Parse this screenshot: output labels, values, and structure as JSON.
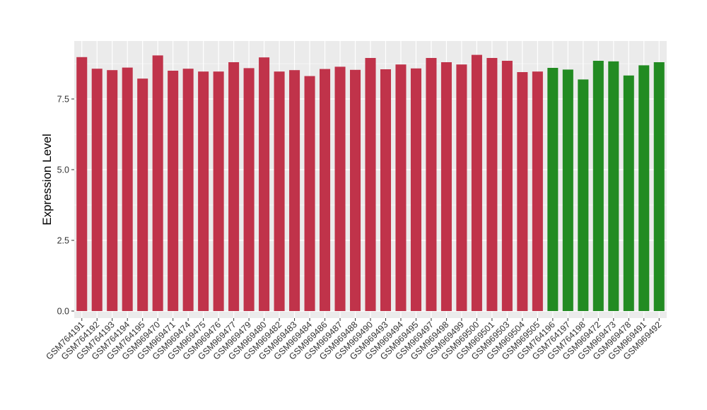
{
  "chart_data": {
    "type": "bar",
    "title": "",
    "xlabel": "",
    "ylabel": "Expression Level",
    "ylim": [
      -0.25,
      9.55
    ],
    "yticks": [
      0.0,
      2.5,
      5.0,
      7.5
    ],
    "ytick_labels": [
      "0.0",
      "2.5",
      "5.0",
      "7.5"
    ],
    "grid": true,
    "panel_background": "#ebebeb",
    "legend": "none",
    "group_colors": {
      "group1": "#c0334a",
      "group2": "#228b22"
    },
    "categories": [
      "GSM764191",
      "GSM764192",
      "GSM764193",
      "GSM764194",
      "GSM764195",
      "GSM969470",
      "GSM969471",
      "GSM969474",
      "GSM969475",
      "GSM969476",
      "GSM969477",
      "GSM969479",
      "GSM969480",
      "GSM969482",
      "GSM969483",
      "GSM969484",
      "GSM969486",
      "GSM969487",
      "GSM969488",
      "GSM969490",
      "GSM969493",
      "GSM969494",
      "GSM969495",
      "GSM969497",
      "GSM969498",
      "GSM969499",
      "GSM969500",
      "GSM969501",
      "GSM969503",
      "GSM969504",
      "GSM969505",
      "GSM764196",
      "GSM764197",
      "GSM764198",
      "GSM969472",
      "GSM969473",
      "GSM969478",
      "GSM969491",
      "GSM969492"
    ],
    "values": [
      8.98,
      8.57,
      8.52,
      8.61,
      8.22,
      9.04,
      8.5,
      8.57,
      8.47,
      8.47,
      8.8,
      8.59,
      8.97,
      8.47,
      8.52,
      8.31,
      8.56,
      8.64,
      8.53,
      8.95,
      8.55,
      8.72,
      8.58,
      8.95,
      8.8,
      8.72,
      9.06,
      8.95,
      8.85,
      8.45,
      8.47,
      8.6,
      8.54,
      8.19,
      8.85,
      8.83,
      8.33,
      8.69,
      8.8
    ],
    "groups": [
      "group1",
      "group1",
      "group1",
      "group1",
      "group1",
      "group1",
      "group1",
      "group1",
      "group1",
      "group1",
      "group1",
      "group1",
      "group1",
      "group1",
      "group1",
      "group1",
      "group1",
      "group1",
      "group1",
      "group1",
      "group1",
      "group1",
      "group1",
      "group1",
      "group1",
      "group1",
      "group1",
      "group1",
      "group1",
      "group1",
      "group1",
      "group2",
      "group2",
      "group2",
      "group2",
      "group2",
      "group2",
      "group2",
      "group2"
    ]
  }
}
